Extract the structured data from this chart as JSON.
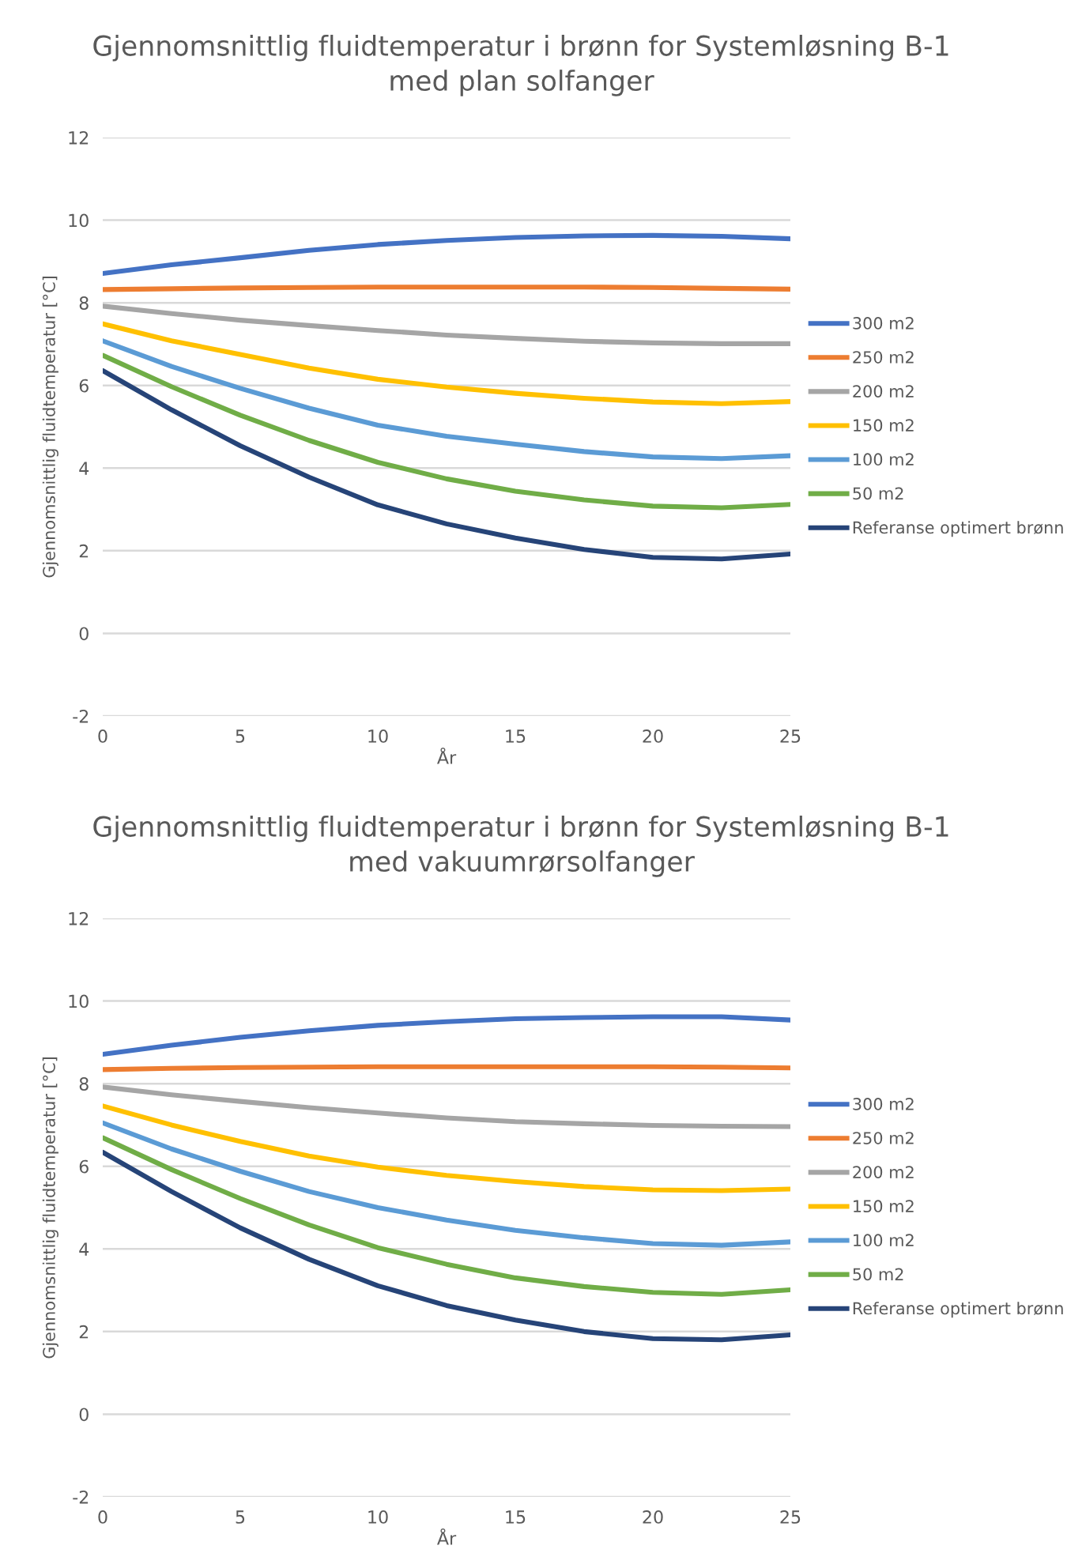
{
  "chart_data": [
    {
      "type": "line",
      "title": "Gjennomsnittlig fluidtemperatur i brønn for Systemløsning B-1\nmed plan solfanger",
      "xlabel": "År",
      "ylabel": "Gjennomsnittlig fluidtemperatur [°C]",
      "x": [
        0,
        2.5,
        5,
        7.5,
        10,
        12.5,
        15,
        17.5,
        20,
        22.5,
        25
      ],
      "xlim": [
        0,
        25
      ],
      "xticks": [
        0,
        5,
        10,
        15,
        20,
        25
      ],
      "ylim": [
        -2,
        12
      ],
      "yticks": [
        -2,
        0,
        2,
        4,
        6,
        8,
        10,
        12
      ],
      "grid": "y",
      "legend": "right",
      "marker": "none",
      "line_style": "solid",
      "series": [
        {
          "name": "300 m2",
          "color": "#4472c4",
          "values": [
            8.71,
            8.92,
            9.09,
            9.27,
            9.41,
            9.51,
            9.58,
            9.62,
            9.63,
            9.61,
            9.55
          ]
        },
        {
          "name": "250 m2",
          "color": "#ed7d31",
          "values": [
            8.32,
            8.34,
            8.36,
            8.37,
            8.38,
            8.38,
            8.38,
            8.38,
            8.37,
            8.35,
            8.33
          ]
        },
        {
          "name": "200 m2",
          "color": "#a5a5a5",
          "values": [
            7.92,
            7.74,
            7.58,
            7.45,
            7.33,
            7.22,
            7.14,
            7.07,
            7.03,
            7.01,
            7.01
          ]
        },
        {
          "name": "150 m2",
          "color": "#ffc000",
          "values": [
            7.49,
            7.08,
            6.75,
            6.42,
            6.15,
            5.96,
            5.81,
            5.69,
            5.6,
            5.56,
            5.61
          ]
        },
        {
          "name": "100 m2",
          "color": "#5b9bd5",
          "values": [
            7.08,
            6.46,
            5.93,
            5.45,
            5.04,
            4.77,
            4.58,
            4.4,
            4.27,
            4.23,
            4.3
          ]
        },
        {
          "name": "50 m2",
          "color": "#70ad47",
          "values": [
            6.73,
            5.97,
            5.28,
            4.67,
            4.14,
            3.74,
            3.44,
            3.23,
            3.08,
            3.04,
            3.12
          ]
        },
        {
          "name": "Referanse optimert brønn",
          "color": "#264478",
          "values": [
            6.36,
            5.41,
            4.54,
            3.78,
            3.11,
            2.65,
            2.31,
            2.03,
            1.84,
            1.8,
            1.92
          ]
        }
      ]
    },
    {
      "type": "line",
      "title": "Gjennomsnittlig fluidtemperatur i brønn for Systemløsning B-1\nmed vakuumrørsolfanger",
      "xlabel": "År",
      "ylabel": "Gjennomsnittlig fluidtemperatur [°C]",
      "x": [
        0,
        2.5,
        5,
        7.5,
        10,
        12.5,
        15,
        17.5,
        20,
        22.5,
        25
      ],
      "xlim": [
        0,
        25
      ],
      "xticks": [
        0,
        5,
        10,
        15,
        20,
        25
      ],
      "ylim": [
        -2,
        12
      ],
      "yticks": [
        -2,
        0,
        2,
        4,
        6,
        8,
        10,
        12
      ],
      "grid": "y",
      "legend": "right",
      "marker": "none",
      "line_style": "solid",
      "series": [
        {
          "name": "300 m2",
          "color": "#4472c4",
          "values": [
            8.71,
            8.93,
            9.12,
            9.28,
            9.41,
            9.5,
            9.57,
            9.6,
            9.62,
            9.62,
            9.54
          ]
        },
        {
          "name": "250 m2",
          "color": "#ed7d31",
          "values": [
            8.34,
            8.37,
            8.39,
            8.4,
            8.41,
            8.41,
            8.41,
            8.41,
            8.41,
            8.4,
            8.38
          ]
        },
        {
          "name": "200 m2",
          "color": "#a5a5a5",
          "values": [
            7.92,
            7.73,
            7.57,
            7.42,
            7.29,
            7.17,
            7.08,
            7.03,
            6.99,
            6.97,
            6.96
          ]
        },
        {
          "name": "150 m2",
          "color": "#ffc000",
          "values": [
            7.46,
            7.0,
            6.6,
            6.25,
            5.98,
            5.78,
            5.63,
            5.51,
            5.43,
            5.41,
            5.45
          ]
        },
        {
          "name": "100 m2",
          "color": "#5b9bd5",
          "values": [
            7.05,
            6.42,
            5.88,
            5.39,
            5.0,
            4.7,
            4.45,
            4.27,
            4.13,
            4.09,
            4.17
          ]
        },
        {
          "name": "50 m2",
          "color": "#70ad47",
          "values": [
            6.69,
            5.92,
            5.22,
            4.58,
            4.03,
            3.63,
            3.3,
            3.09,
            2.95,
            2.9,
            3.01
          ]
        },
        {
          "name": "Referanse optimert brønn",
          "color": "#264478",
          "values": [
            6.34,
            5.39,
            4.51,
            3.75,
            3.11,
            2.63,
            2.28,
            2.0,
            1.83,
            1.8,
            1.92
          ]
        }
      ]
    }
  ]
}
